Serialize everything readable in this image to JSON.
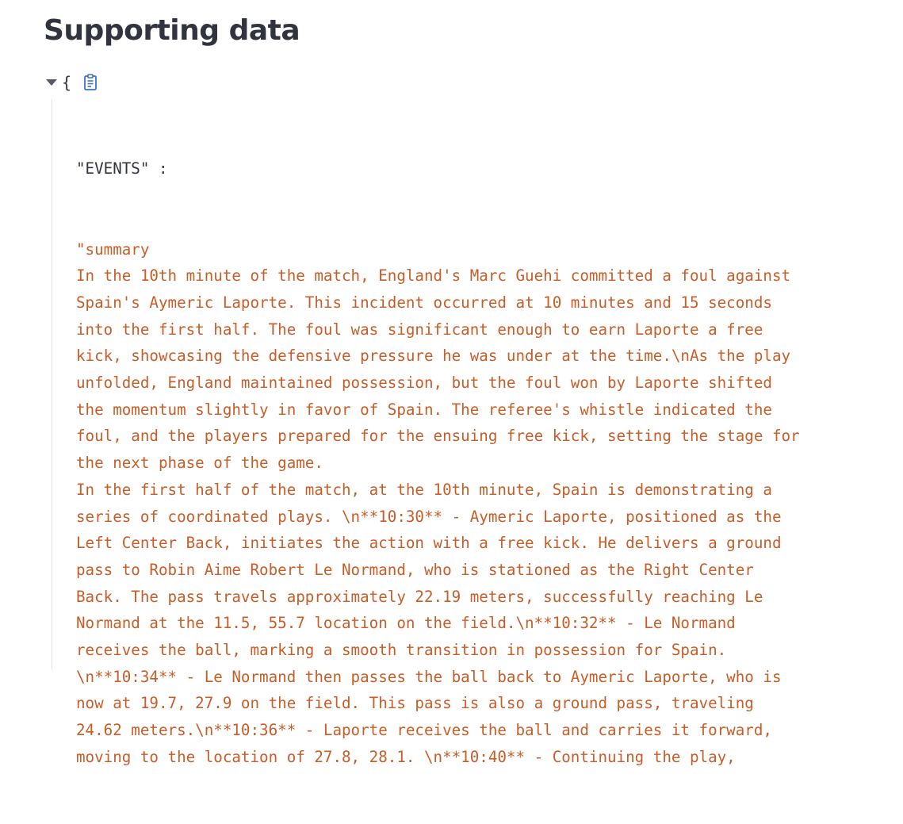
{
  "page": {
    "title": "Supporting data"
  },
  "json_viewer": {
    "open_brace": "{",
    "key": "\"EVENTS\" :",
    "value_lines": [
      "\"summary",
      "In the 10th minute of the match, England's Marc Guehi committed a foul against",
      "Spain's Aymeric Laporte. This incident occurred at 10 minutes and 15 seconds",
      "into the first half. The foul was significant enough to earn Laporte a free",
      "kick, showcasing the defensive pressure he was under at the time.\\nAs the play",
      "unfolded, England maintained possession, but the foul won by Laporte shifted",
      "the momentum slightly in favor of Spain. The referee's whistle indicated the",
      "foul, and the players prepared for the ensuing free kick, setting the stage for",
      "the next phase of the game.",
      "In the first half of the match, at the 10th minute, Spain is demonstrating a",
      "series of coordinated plays. \\n**10:30** - Aymeric Laporte, positioned as the",
      "Left Center Back, initiates the action with a free kick. He delivers a ground",
      "pass to Robin Aime Robert Le Normand, who is stationed as the Right Center",
      "Back. The pass travels approximately 22.19 meters, successfully reaching Le",
      "Normand at the 11.5, 55.7 location on the field.\\n**10:32** - Le Normand",
      "receives the ball, marking a smooth transition in possession for Spain.",
      "\\n**10:34** - Le Normand then passes the ball back to Aymeric Laporte, who is",
      "now at 19.7, 27.9 on the field. This pass is also a ground pass, traveling",
      "24.62 meters.\\n**10:36** - Laporte receives the ball and carries it forward,",
      "moving to the location of 27.8, 28.1. \\n**10:40** - Continuing the play,"
    ],
    "icons": {
      "toggle": "caret-down-icon",
      "copy": "clipboard-icon"
    },
    "colors": {
      "key": "#31333f",
      "string": "#c95d28",
      "guide": "#e3e5ea"
    }
  }
}
